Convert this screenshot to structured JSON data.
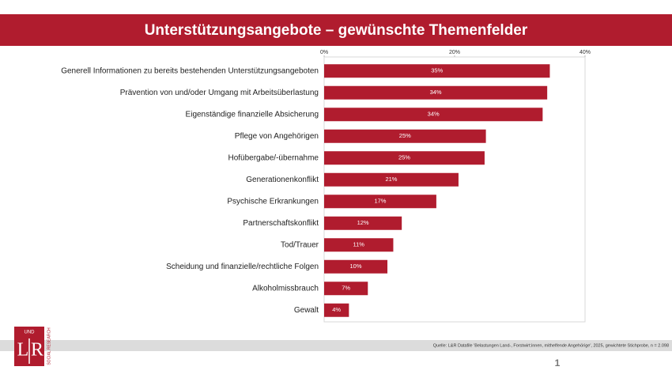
{
  "chart_data": {
    "type": "barh",
    "title": "Unterstützungsangebote – gewünschte Themenfelder",
    "categories": [
      "Generell Informationen zu bereits bestehenden Unterstützungsangeboten",
      "Prävention von und/oder Umgang mit Arbeitsüberlastung",
      "Eigenständige finanzielle Absicherung",
      "Pflege von Angehörigen",
      "Hofübergabe/-übernahme",
      "Generationenkonflikt",
      "Psychische Erkrankungen",
      "Partnerschaftskonflikt",
      "Tod/Trauer",
      "Scheidung und finanzielle/rechtliche Folgen",
      "Alkoholmissbrauch",
      "Gewalt"
    ],
    "values": [
      34.6,
      34.2,
      33.5,
      24.8,
      24.6,
      20.6,
      17.2,
      11.9,
      10.6,
      9.7,
      6.7,
      3.8
    ],
    "value_labels": [
      "35%",
      "34%",
      "34%",
      "25%",
      "25%",
      "21%",
      "17%",
      "12%",
      "11%",
      "10%",
      "7%",
      "4%"
    ],
    "color": "#b01c2e",
    "xlim": [
      0,
      40
    ],
    "xticks": [
      {
        "value": 0,
        "label": "0%"
      },
      {
        "value": 20,
        "label": "20%"
      },
      {
        "value": 40,
        "label": "40%"
      }
    ],
    "grid": false
  },
  "footer": {
    "source": "Quelle: L&R Datafile 'Belastungen Land-, Forstwirt:innen, mithelfende Angehörige', 2025, gewichtete Stichprobe, n = 2.098",
    "page_number": "1"
  },
  "logo": {
    "left": "L",
    "right": "R",
    "und": "UND",
    "tagline": "SOCIAL RESEARCH"
  }
}
